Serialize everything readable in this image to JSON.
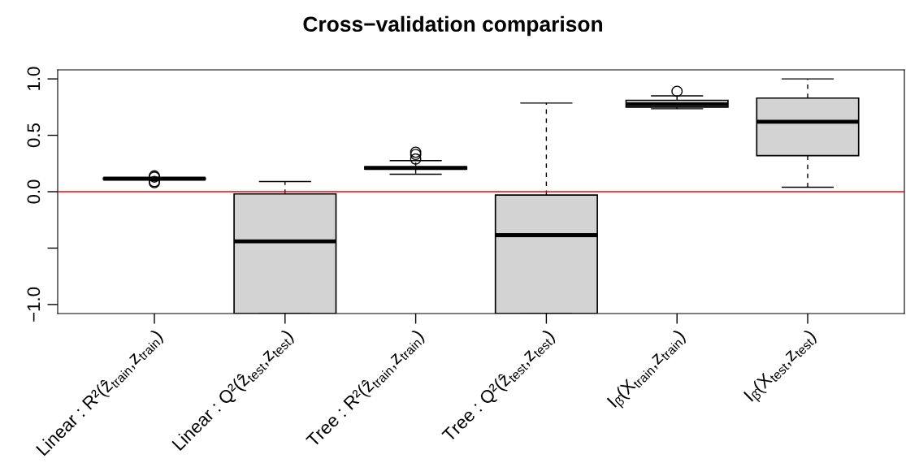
{
  "chart_data": {
    "type": "box",
    "title": "Cross−validation comparison",
    "categories": [
      "Linear : R²(ẑ$_{train}$,z$_{train}$)",
      "Linear : Q²(ẑ$_{test}$,z$_{test}$)",
      "Tree : R²(ẑ$_{train}$,z$_{train}$)",
      "Tree : Q²(ẑ$_{test}$,z$_{test}$)",
      "I$_{β̂}$(X$_{train}$,z$_{train}$)",
      "I$_{β̂}$(X$_{test}$,z$_{test}$)"
    ],
    "color": "#d3d3d3",
    "boxes": [
      {
        "low": 0.11,
        "q1": 0.11,
        "median": 0.115,
        "q3": 0.12,
        "high": 0.12,
        "outliers": [
          0.14,
          0.13,
          0.09,
          0.08
        ]
      },
      {
        "low": -1.08,
        "q1": -1.08,
        "median": -0.44,
        "q3": -0.02,
        "high": 0.09
      },
      {
        "low": 0.155,
        "q1": 0.2,
        "median": 0.21,
        "q3": 0.22,
        "high": 0.275,
        "outliers": [
          0.35,
          0.33,
          0.29
        ]
      },
      {
        "low": -1.08,
        "q1": -1.08,
        "median": -0.385,
        "q3": -0.03,
        "high": 0.786
      },
      {
        "low": 0.735,
        "q1": 0.75,
        "median": 0.775,
        "q3": 0.81,
        "high": 0.85,
        "outliers": [
          0.89
        ]
      },
      {
        "low": 0.04,
        "q1": 0.32,
        "median": 0.62,
        "q3": 0.83,
        "high": 1.0
      }
    ],
    "ylim": [
      -1.08,
      1.08
    ],
    "yticks": [
      {
        "value": -1,
        "label": "−1.0"
      },
      {
        "value": -0.5,
        "label": null
      },
      {
        "value": 0,
        "label": "0.0"
      },
      0.5,
      {
        "value": 1,
        "label": "1.0"
      }
    ],
    "ref_lines": [
      {
        "axis": "y",
        "value": 0,
        "color": "#ff0000"
      }
    ]
  }
}
